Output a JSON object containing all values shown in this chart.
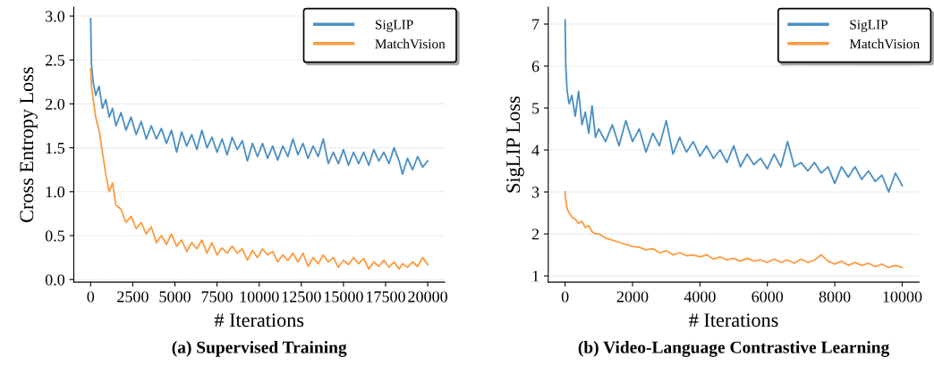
{
  "chart_data": [
    {
      "type": "line",
      "title": "(a) Supervised Training",
      "xlabel": "# Iterations",
      "ylabel": "Cross Entropy Loss",
      "x": [
        0,
        50,
        150,
        300,
        500,
        700,
        900,
        1100,
        1300,
        1500,
        1800,
        2100,
        2400,
        2700,
        3000,
        3300,
        3600,
        3900,
        4200,
        4500,
        4800,
        5100,
        5400,
        5700,
        6000,
        6300,
        6600,
        6900,
        7200,
        7500,
        7800,
        8100,
        8400,
        8700,
        9000,
        9300,
        9600,
        9900,
        10200,
        10500,
        10800,
        11100,
        11400,
        11700,
        12000,
        12300,
        12600,
        12900,
        13200,
        13500,
        13800,
        14100,
        14400,
        14700,
        15000,
        15300,
        15600,
        15900,
        16200,
        16500,
        16800,
        17100,
        17400,
        17700,
        18000,
        18300,
        18500,
        18800,
        19100,
        19400,
        19700,
        20000
      ],
      "series": [
        {
          "name": "SigLIP",
          "color": "#4a8fc4",
          "values": [
            2.97,
            2.45,
            2.25,
            2.1,
            2.2,
            1.95,
            2.05,
            1.85,
            1.95,
            1.75,
            1.9,
            1.7,
            1.85,
            1.65,
            1.8,
            1.6,
            1.75,
            1.6,
            1.72,
            1.55,
            1.7,
            1.45,
            1.68,
            1.52,
            1.65,
            1.48,
            1.7,
            1.5,
            1.62,
            1.45,
            1.6,
            1.42,
            1.62,
            1.48,
            1.58,
            1.35,
            1.55,
            1.4,
            1.55,
            1.38,
            1.52,
            1.36,
            1.52,
            1.4,
            1.6,
            1.42,
            1.55,
            1.38,
            1.52,
            1.4,
            1.6,
            1.32,
            1.45,
            1.32,
            1.48,
            1.3,
            1.45,
            1.32,
            1.45,
            1.3,
            1.48,
            1.35,
            1.45,
            1.32,
            1.5,
            1.35,
            1.2,
            1.38,
            1.25,
            1.4,
            1.28,
            1.35
          ]
        },
        {
          "name": "MatchVision",
          "color": "#fd9a40",
          "values": [
            2.4,
            2.2,
            2.05,
            1.85,
            1.7,
            1.45,
            1.2,
            1.0,
            1.1,
            0.85,
            0.8,
            0.65,
            0.72,
            0.58,
            0.65,
            0.52,
            0.6,
            0.42,
            0.5,
            0.4,
            0.52,
            0.38,
            0.45,
            0.32,
            0.42,
            0.35,
            0.45,
            0.3,
            0.42,
            0.28,
            0.36,
            0.3,
            0.38,
            0.3,
            0.35,
            0.22,
            0.33,
            0.25,
            0.35,
            0.28,
            0.32,
            0.2,
            0.28,
            0.22,
            0.3,
            0.2,
            0.3,
            0.15,
            0.25,
            0.18,
            0.28,
            0.2,
            0.25,
            0.14,
            0.22,
            0.17,
            0.25,
            0.18,
            0.24,
            0.12,
            0.2,
            0.15,
            0.22,
            0.14,
            0.2,
            0.12,
            0.18,
            0.14,
            0.2,
            0.15,
            0.25,
            0.17
          ]
        }
      ],
      "xlim": [
        -1000,
        21000
      ],
      "xticks": [
        0,
        2500,
        5000,
        7500,
        10000,
        12500,
        15000,
        17500,
        20000
      ],
      "ylim": [
        -0.03,
        3.1
      ],
      "yticks": [
        {
          "value": 0,
          "label": "0.0"
        },
        0.5,
        {
          "value": 1,
          "label": "1.0"
        },
        1.5,
        {
          "value": 2,
          "label": "2.0"
        },
        2.5,
        {
          "value": 3,
          "label": "3.0"
        }
      ],
      "grid": "y",
      "legend": "top right"
    },
    {
      "type": "line",
      "title": "(b) Video-Language Contrastive Learning",
      "xlabel": "# Iterations",
      "ylabel": "SigLIP Loss",
      "x": [
        0,
        20,
        60,
        120,
        200,
        300,
        400,
        500,
        600,
        700,
        800,
        900,
        1000,
        1200,
        1400,
        1600,
        1800,
        2000,
        2200,
        2400,
        2600,
        2800,
        3000,
        3200,
        3400,
        3600,
        3800,
        4000,
        4200,
        4400,
        4600,
        4800,
        5000,
        5200,
        5400,
        5600,
        5800,
        6000,
        6200,
        6400,
        6600,
        6800,
        7000,
        7200,
        7400,
        7600,
        7800,
        8000,
        8200,
        8400,
        8600,
        8800,
        9000,
        9200,
        9400,
        9600,
        9800,
        10000
      ],
      "series": [
        {
          "name": "SigLIP",
          "color": "#4a8fc4",
          "values": [
            7.1,
            6.0,
            5.4,
            5.1,
            5.3,
            4.8,
            5.4,
            4.6,
            4.9,
            4.4,
            5.05,
            4.3,
            4.5,
            4.2,
            4.6,
            4.1,
            4.7,
            4.2,
            4.5,
            3.95,
            4.4,
            4.1,
            4.7,
            3.9,
            4.3,
            3.95,
            4.2,
            3.85,
            4.1,
            3.8,
            4.0,
            3.7,
            4.1,
            3.6,
            3.9,
            3.65,
            3.8,
            3.55,
            3.9,
            3.6,
            4.2,
            3.6,
            3.7,
            3.5,
            3.7,
            3.45,
            3.6,
            3.2,
            3.6,
            3.35,
            3.6,
            3.3,
            3.5,
            3.25,
            3.4,
            3.0,
            3.45,
            3.15
          ]
        },
        {
          "name": "MatchVision",
          "color": "#fd9a40",
          "values": [
            3.0,
            2.8,
            2.6,
            2.5,
            2.4,
            2.35,
            2.25,
            2.3,
            2.15,
            2.2,
            2.05,
            2.0,
            2.0,
            1.9,
            1.85,
            1.8,
            1.75,
            1.7,
            1.68,
            1.62,
            1.65,
            1.55,
            1.6,
            1.5,
            1.55,
            1.48,
            1.5,
            1.45,
            1.5,
            1.4,
            1.45,
            1.38,
            1.42,
            1.35,
            1.42,
            1.35,
            1.38,
            1.32,
            1.4,
            1.32,
            1.38,
            1.3,
            1.4,
            1.32,
            1.38,
            1.5,
            1.35,
            1.28,
            1.35,
            1.25,
            1.32,
            1.25,
            1.3,
            1.22,
            1.28,
            1.2,
            1.25,
            1.2
          ]
        }
      ],
      "xlim": [
        -500,
        10500
      ],
      "xticks": [
        0,
        2000,
        4000,
        6000,
        8000,
        10000
      ],
      "ylim": [
        0.85,
        7.4
      ],
      "yticks": [
        1,
        2,
        3,
        4,
        5,
        6,
        7
      ],
      "grid": "y",
      "legend": "top right"
    }
  ]
}
